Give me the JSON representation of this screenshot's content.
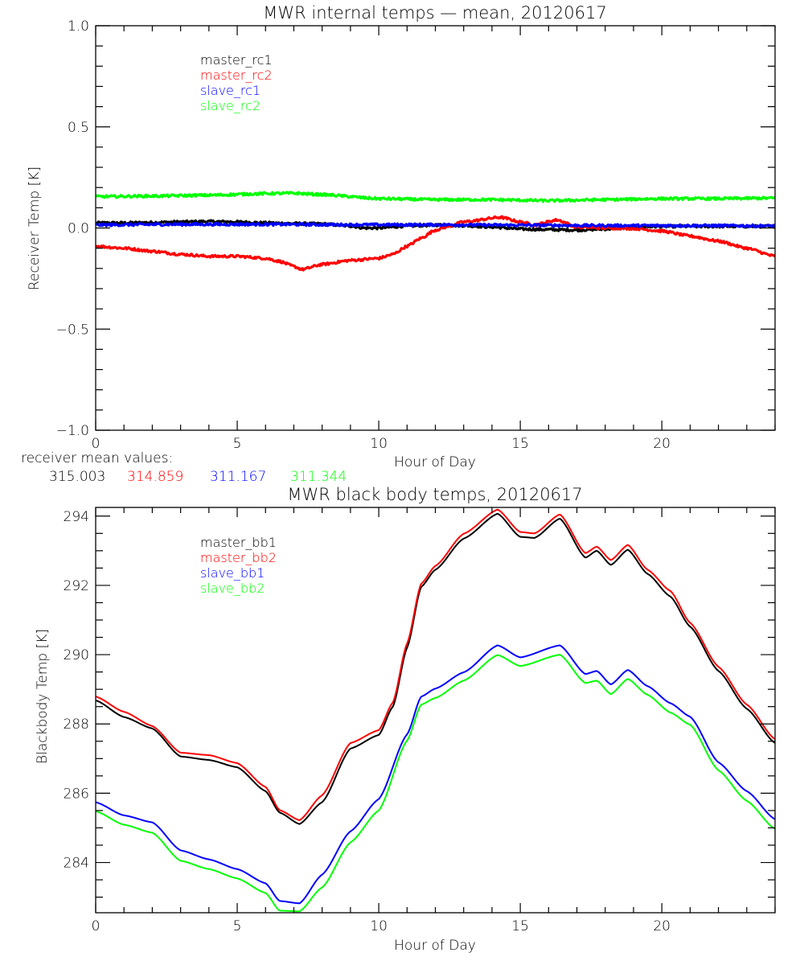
{
  "chart_data": [
    {
      "type": "line",
      "title": "MWR internal temps — mean, 20120617",
      "xlabel": "Hour of Day",
      "ylabel": "Receiver Temp [K]",
      "xlim": [
        0,
        24
      ],
      "ylim": [
        -1.0,
        1.0
      ],
      "xticks": [
        0,
        5,
        10,
        15,
        20
      ],
      "xtick_labels": [
        "0",
        "5",
        "10",
        "15",
        "20"
      ],
      "yticks": [
        -1.0,
        -0.5,
        0.0,
        0.5,
        1.0
      ],
      "ytick_labels": [
        "−1.0",
        "−0.5",
        "0.0",
        "0.5",
        "1.0"
      ],
      "grid": false,
      "legend_position": "top-left",
      "series": [
        {
          "name": "master_rc1",
          "color": "#000000",
          "x": [
            0,
            1,
            2,
            3,
            4,
            5,
            6,
            7,
            8,
            9,
            9.5,
            10,
            11,
            12,
            13,
            14,
            15,
            16,
            17,
            18,
            19,
            20,
            21,
            22,
            23,
            24
          ],
          "y": [
            0.025,
            0.025,
            0.027,
            0.03,
            0.032,
            0.03,
            0.025,
            0.022,
            0.02,
            0.01,
            0.0,
            0.0,
            0.01,
            0.015,
            0.012,
            0.005,
            -0.005,
            -0.008,
            -0.01,
            -0.005,
            0.005,
            0.008,
            0.008,
            0.008,
            0.008,
            0.008
          ]
        },
        {
          "name": "master_rc2",
          "color": "#ff0000",
          "x": [
            0,
            1,
            2,
            3,
            4,
            5,
            6,
            6.5,
            7,
            7.3,
            8,
            9,
            10,
            10.5,
            11,
            11.5,
            12,
            12.5,
            13,
            14.3,
            15,
            15.5,
            16.3,
            17,
            18,
            19,
            20,
            21,
            22,
            23,
            24
          ],
          "y": [
            -0.09,
            -0.1,
            -0.115,
            -0.13,
            -0.14,
            -0.14,
            -0.15,
            -0.165,
            -0.19,
            -0.205,
            -0.18,
            -0.16,
            -0.15,
            -0.13,
            -0.09,
            -0.05,
            -0.01,
            0.01,
            0.03,
            0.053,
            0.03,
            0.015,
            0.04,
            0.005,
            0.0,
            -0.002,
            -0.015,
            -0.04,
            -0.065,
            -0.1,
            -0.14
          ]
        },
        {
          "name": "slave_rc1",
          "color": "#0000ff",
          "x": [
            0,
            3,
            6,
            9,
            12,
            15,
            18,
            21,
            24
          ],
          "y": [
            0.015,
            0.018,
            0.018,
            0.016,
            0.016,
            0.014,
            0.012,
            0.012,
            0.01
          ]
        },
        {
          "name": "slave_rc2",
          "color": "#00ff00",
          "x": [
            0,
            2,
            4,
            6,
            7,
            8,
            10,
            12,
            14,
            16,
            18,
            20,
            22,
            24
          ],
          "y": [
            0.155,
            0.158,
            0.162,
            0.17,
            0.172,
            0.165,
            0.145,
            0.14,
            0.14,
            0.135,
            0.14,
            0.145,
            0.145,
            0.148
          ]
        }
      ]
    },
    {
      "type": "line",
      "title": "MWR black body temps, 20120617",
      "xlabel": "Hour of Day",
      "ylabel": "Blackbody Temp [K]",
      "xlim": [
        0,
        24
      ],
      "ylim": [
        282.55,
        294.25
      ],
      "xticks": [
        0,
        5,
        10,
        15,
        20
      ],
      "xtick_labels": [
        "0",
        "5",
        "10",
        "15",
        "20"
      ],
      "yticks": [
        284,
        286,
        288,
        290,
        292,
        294
      ],
      "ytick_labels": [
        "284",
        "286",
        "288",
        "290",
        "292",
        "294"
      ],
      "grid": false,
      "legend_position": "top-left",
      "series": [
        {
          "name": "master_bb1",
          "color": "#000000",
          "x": [
            0,
            1,
            2,
            3,
            4,
            5,
            6,
            6.5,
            7.2,
            8,
            9,
            10,
            10.5,
            11,
            11.5,
            12,
            13,
            14.2,
            15,
            15.5,
            16.4,
            17.3,
            17.7,
            18.2,
            18.8,
            19.5,
            20.3,
            21,
            22,
            23,
            24
          ],
          "y": [
            288.68,
            288.2,
            287.87,
            287.06,
            286.96,
            286.75,
            286.06,
            285.44,
            285.11,
            285.74,
            287.29,
            287.68,
            288.5,
            290.2,
            291.96,
            292.45,
            293.35,
            294.07,
            293.4,
            293.37,
            293.93,
            292.8,
            293.0,
            292.59,
            293.03,
            292.33,
            291.68,
            290.81,
            289.53,
            288.44,
            287.45
          ]
        },
        {
          "name": "master_bb2",
          "color": "#ff0000",
          "x": [
            0,
            1,
            2,
            3,
            4,
            5,
            6,
            6.5,
            7.2,
            8,
            9,
            10,
            10.5,
            11,
            11.5,
            12,
            13,
            14.2,
            15,
            15.5,
            16.4,
            17.3,
            17.7,
            18.2,
            18.8,
            19.5,
            20.3,
            21,
            22,
            23,
            24
          ],
          "y": [
            288.79,
            288.35,
            287.94,
            287.17,
            287.1,
            286.87,
            286.18,
            285.51,
            285.22,
            285.94,
            287.45,
            287.82,
            288.62,
            290.32,
            292.05,
            292.56,
            293.49,
            294.19,
            293.54,
            293.5,
            294.05,
            292.93,
            293.12,
            292.73,
            293.17,
            292.45,
            291.84,
            290.92,
            289.65,
            288.56,
            287.56
          ]
        },
        {
          "name": "slave_bb1",
          "color": "#0000ff",
          "x": [
            0,
            1,
            2,
            3,
            4,
            5,
            6,
            6.5,
            7.2,
            8,
            9,
            10,
            11,
            11.5,
            12,
            13,
            14.2,
            15,
            16.4,
            17.3,
            17.7,
            18.2,
            18.8,
            19.5,
            20.3,
            21,
            22,
            23,
            24
          ],
          "y": [
            285.74,
            285.36,
            285.16,
            284.35,
            284.09,
            283.81,
            283.4,
            282.89,
            282.82,
            283.65,
            284.9,
            285.83,
            287.7,
            288.79,
            289.02,
            289.49,
            290.27,
            289.92,
            290.27,
            289.44,
            289.53,
            289.14,
            289.56,
            289.09,
            288.6,
            288.21,
            286.89,
            286.06,
            285.25
          ]
        },
        {
          "name": "slave_bb2",
          "color": "#00ff00",
          "x": [
            0,
            1,
            2,
            3,
            4,
            5,
            6,
            6.5,
            7.2,
            8,
            9,
            10,
            11,
            11.5,
            12,
            13,
            14.2,
            15,
            16.4,
            17.3,
            17.7,
            18.2,
            18.8,
            19.5,
            20.3,
            21,
            22,
            23,
            24
          ],
          "y": [
            285.48,
            285.09,
            284.86,
            284.05,
            283.81,
            283.54,
            283.12,
            282.61,
            282.59,
            283.28,
            284.58,
            285.5,
            287.52,
            288.56,
            288.75,
            289.25,
            289.99,
            289.67,
            290.0,
            289.18,
            289.25,
            288.86,
            289.3,
            288.84,
            288.33,
            287.98,
            286.66,
            285.78,
            284.97
          ]
        }
      ]
    }
  ],
  "receiver_mean": {
    "label": "receiver mean values:",
    "values": [
      {
        "value": "315.003",
        "color": "#000000"
      },
      {
        "value": "314.859",
        "color": "#ff0000"
      },
      {
        "value": "311.167",
        "color": "#0000ff"
      },
      {
        "value": "311.344",
        "color": "#00ff00"
      }
    ]
  }
}
